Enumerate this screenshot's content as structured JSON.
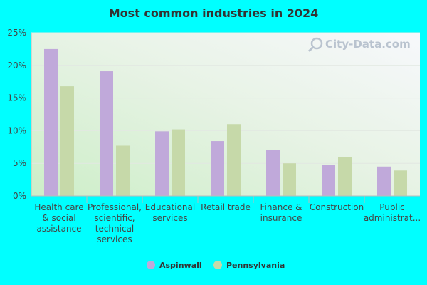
{
  "chart_data": {
    "type": "bar",
    "title": "Most common industries in 2024",
    "categories": [
      [
        "Health care",
        "& social",
        "assistance"
      ],
      [
        "Professional,",
        "scientific,",
        "technical",
        "services"
      ],
      [
        "Educational",
        "services"
      ],
      [
        "Retail trade"
      ],
      [
        "Finance &",
        "insurance"
      ],
      [
        "Construction"
      ],
      [
        "Public",
        "administrat..."
      ]
    ],
    "series": [
      {
        "name": "Aspinwall",
        "color": "#c0a9da",
        "values": [
          22.5,
          19.1,
          9.9,
          8.4,
          7.0,
          4.7,
          4.5
        ]
      },
      {
        "name": "Pennsylvania",
        "color": "#c6d9a9",
        "values": [
          16.8,
          7.7,
          10.2,
          11.0,
          5.0,
          6.0,
          3.9
        ]
      }
    ],
    "yticks": [
      "0%",
      "5%",
      "10%",
      "15%",
      "20%",
      "25%"
    ],
    "ylim": [
      0,
      25
    ],
    "legend_position": "bottom",
    "watermark": "City-Data.com"
  }
}
